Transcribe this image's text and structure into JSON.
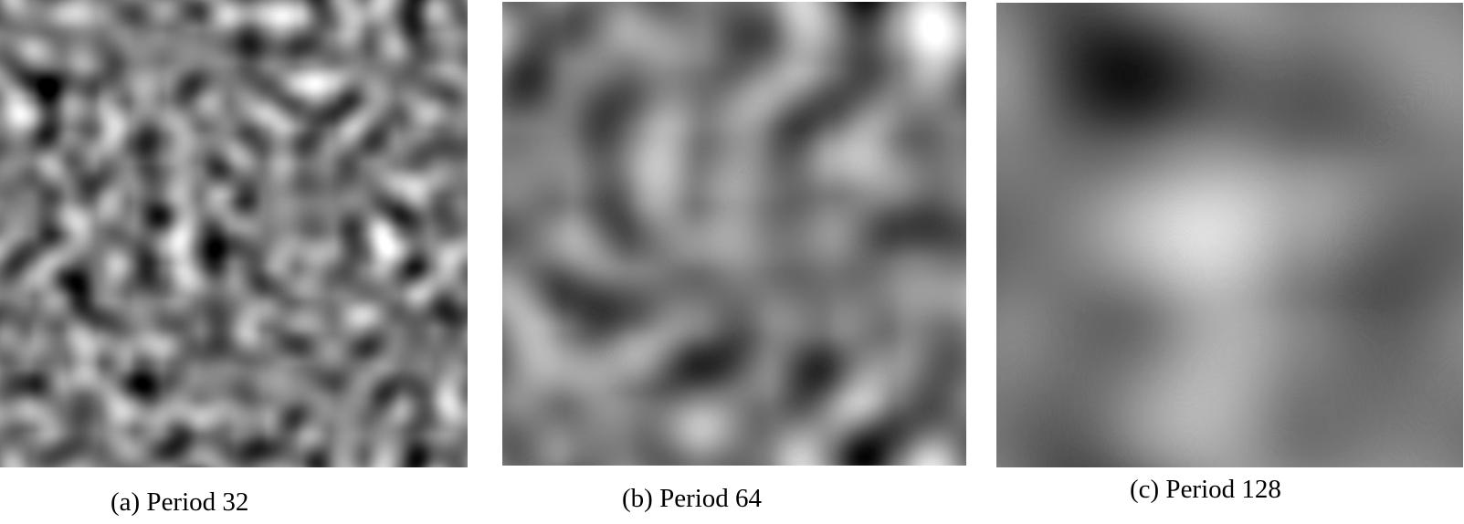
{
  "panels": [
    {
      "id": "a",
      "caption": "(a) Period 32",
      "period": 32
    },
    {
      "id": "b",
      "caption": "(b) Period 64",
      "period": 64
    },
    {
      "id": "c",
      "caption": "(c) Period 128",
      "period": 128
    }
  ],
  "colors": {
    "background": "#ffffff",
    "text": "#000000"
  }
}
